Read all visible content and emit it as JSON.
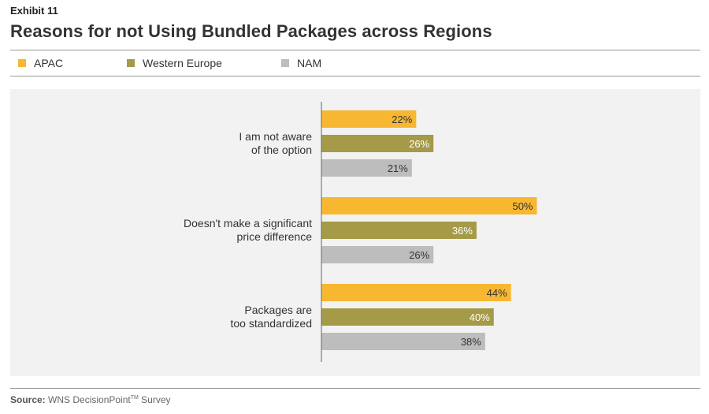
{
  "header": {
    "exhibit": "Exhibit 11",
    "title": "Reasons for not Using Bundled Packages across Regions"
  },
  "legend": [
    {
      "label": "APAC",
      "color": "#f7b731"
    },
    {
      "label": "Western Europe",
      "color": "#a59a48"
    },
    {
      "label": "NAM",
      "color": "#bdbdbd"
    }
  ],
  "footer": {
    "source_label": "Source:",
    "source_text": "WNS DecisionPoint",
    "source_tm": "TM",
    "source_tail": " Survey"
  },
  "chart_data": {
    "type": "bar",
    "orientation": "horizontal",
    "title": "Reasons for not Using Bundled Packages across Regions",
    "xlabel": "",
    "ylabel": "",
    "xlim": [
      0,
      60
    ],
    "grid": false,
    "legend_position": "top",
    "categories": [
      [
        "I am not aware",
        "of the option"
      ],
      [
        "Doesn't make a significant",
        "price difference"
      ],
      [
        "Packages are",
        "too standardized"
      ]
    ],
    "series": [
      {
        "name": "APAC",
        "color": "#f7b731",
        "label_color": "#333333",
        "values": [
          22,
          50,
          44
        ]
      },
      {
        "name": "Western Europe",
        "color": "#a59a48",
        "label_color": "#ffffff",
        "values": [
          26,
          36,
          40
        ]
      },
      {
        "name": "NAM",
        "color": "#bdbdbd",
        "label_color": "#333333",
        "values": [
          21,
          26,
          38
        ]
      }
    ],
    "value_suffix": "%"
  }
}
